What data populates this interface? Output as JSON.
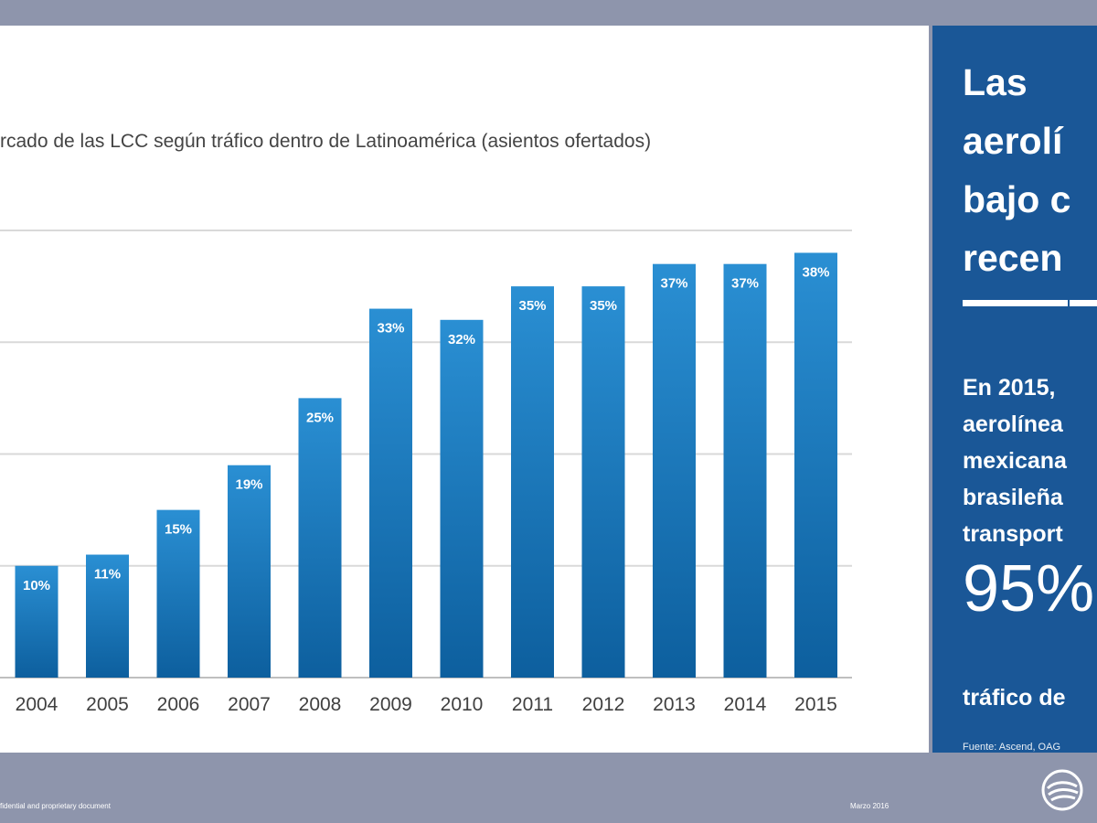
{
  "chart_data": {
    "type": "bar",
    "title": "rcado de las LCC según tráfico dentro de Latinoamérica (asientos ofertados)",
    "categories": [
      "2004",
      "2005",
      "2006",
      "2007",
      "2008",
      "2009",
      "2010",
      "2011",
      "2012",
      "2013",
      "2014",
      "2015"
    ],
    "values": [
      10,
      11,
      15,
      19,
      25,
      33,
      32,
      35,
      35,
      37,
      37,
      38
    ],
    "value_labels": [
      "10%",
      "11%",
      "15%",
      "19%",
      "25%",
      "33%",
      "32%",
      "35%",
      "35%",
      "37%",
      "37%",
      "38%"
    ],
    "ylim": [
      0,
      40
    ],
    "grid": true,
    "bar_color": "#1a78bf"
  },
  "side_panel": {
    "heading": "Las\naerolí\nbajo c\nrecen",
    "text": "En 2015,\naerolínea\nmexicana\nbrasileña\ntransport",
    "big_number": "95%",
    "text_2": "tráfico de",
    "source": "Fuente: Ascend, OAG"
  },
  "footer": {
    "left": "fidential and proprietary document",
    "right": "Marzo 2016"
  }
}
